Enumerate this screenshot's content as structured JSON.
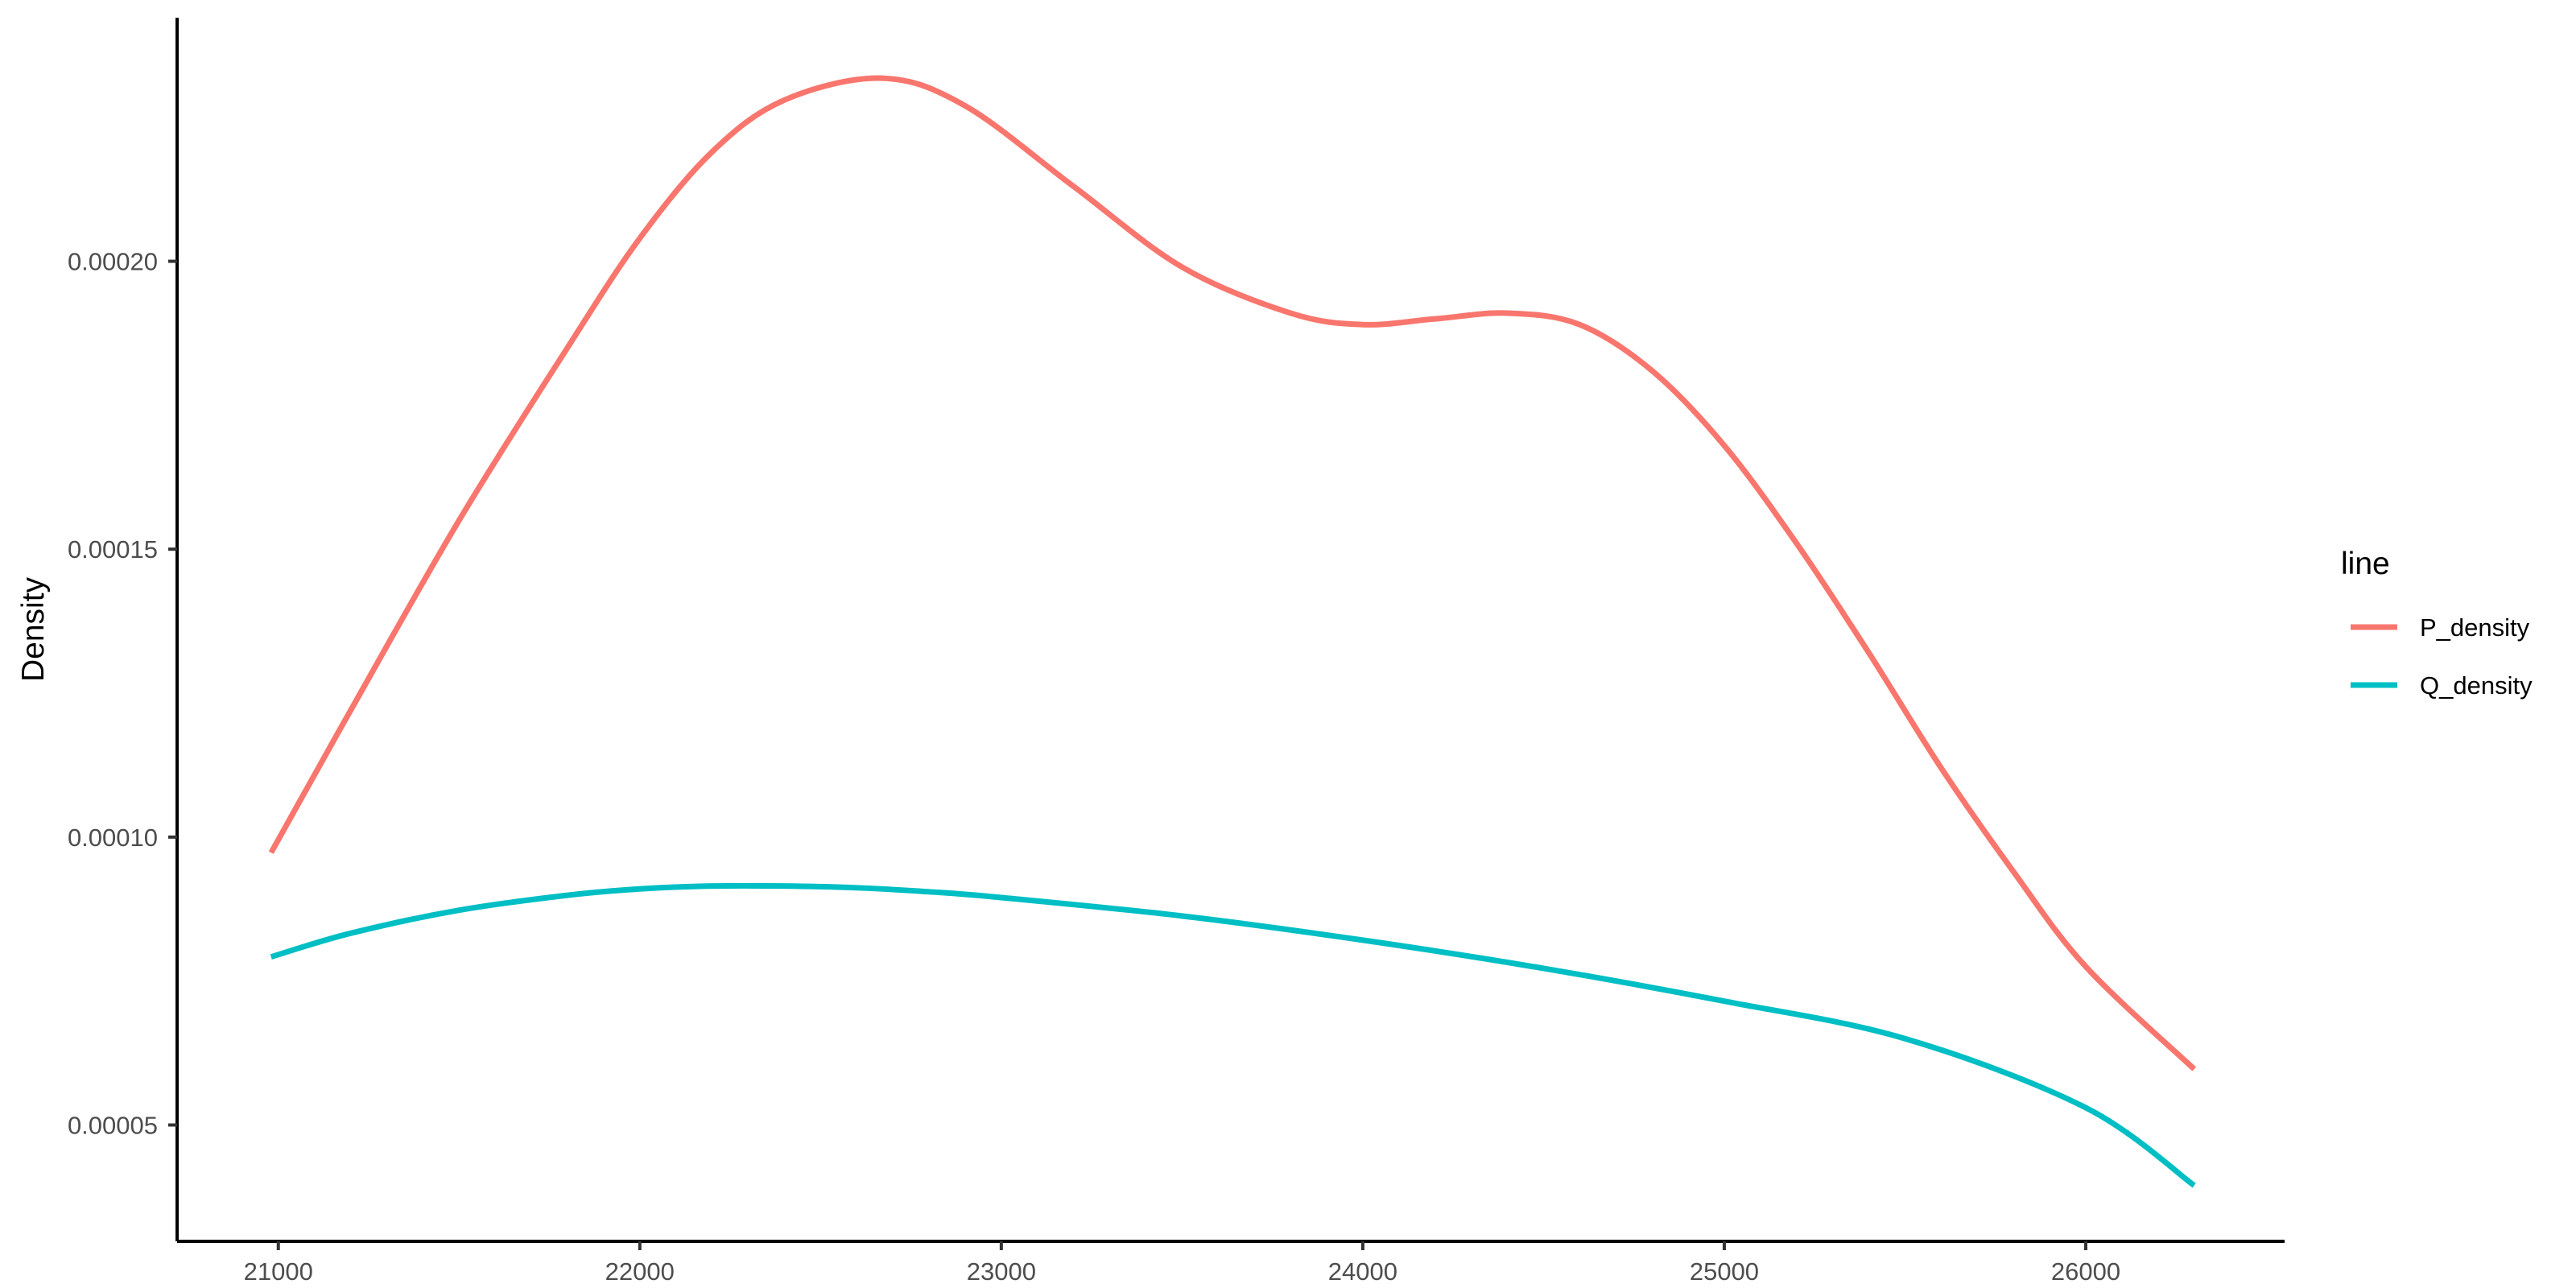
{
  "chart_data": {
    "type": "line",
    "title": "",
    "xlabel": "",
    "ylabel": "Density",
    "xlim": [
      20720,
      26550
    ],
    "ylim": [
      2.98e-05,
      0.0002423
    ],
    "x_ticks": [
      21000,
      22000,
      23000,
      24000,
      25000,
      26000
    ],
    "x_tick_labels": [
      "21000",
      "22000",
      "23000",
      "24000",
      "25000",
      "26000"
    ],
    "y_ticks": [
      5e-05,
      0.0001,
      0.00015,
      0.0002
    ],
    "y_tick_labels": [
      "0.00005",
      "0.00010",
      "0.00015",
      "0.00020"
    ],
    "grid": false,
    "legend": {
      "title": "line",
      "position": "right"
    },
    "series": [
      {
        "name": "P_density",
        "color": "#F8766D",
        "x": [
          20980,
          21200,
          21500,
          21800,
          22000,
          22200,
          22400,
          22670,
          22900,
          23200,
          23500,
          23800,
          24000,
          24200,
          24400,
          24600,
          24800,
          25000,
          25200,
          25400,
          25600,
          25800,
          26000,
          26300
        ],
        "y": [
          9.73e-05,
          0.000122,
          0.000155,
          0.000185,
          0.000204,
          0.000219,
          0.000228,
          0.0002318,
          0.000227,
          0.000213,
          0.000199,
          0.000191,
          0.000189,
          0.00019,
          0.000191,
          0.000189,
          0.000181,
          0.000168,
          0.000151,
          0.000132,
          0.000112,
          9.4e-05,
          7.75e-05,
          5.97e-05
        ]
      },
      {
        "name": "Q_density",
        "color": "#00BFC4",
        "x": [
          20980,
          21200,
          21500,
          21800,
          22000,
          22200,
          22400,
          22600,
          22800,
          23000,
          23500,
          24000,
          24500,
          25000,
          25500,
          26000,
          26300
        ],
        "y": [
          7.92e-05,
          8.33e-05,
          8.73e-05,
          8.99e-05,
          9.1e-05,
          9.15e-05,
          9.15e-05,
          9.12e-05,
          9.05e-05,
          8.95e-05,
          8.63e-05,
          8.21e-05,
          7.72e-05,
          7.15e-05,
          6.5e-05,
          5.3e-05,
          3.95e-05
        ]
      }
    ]
  }
}
